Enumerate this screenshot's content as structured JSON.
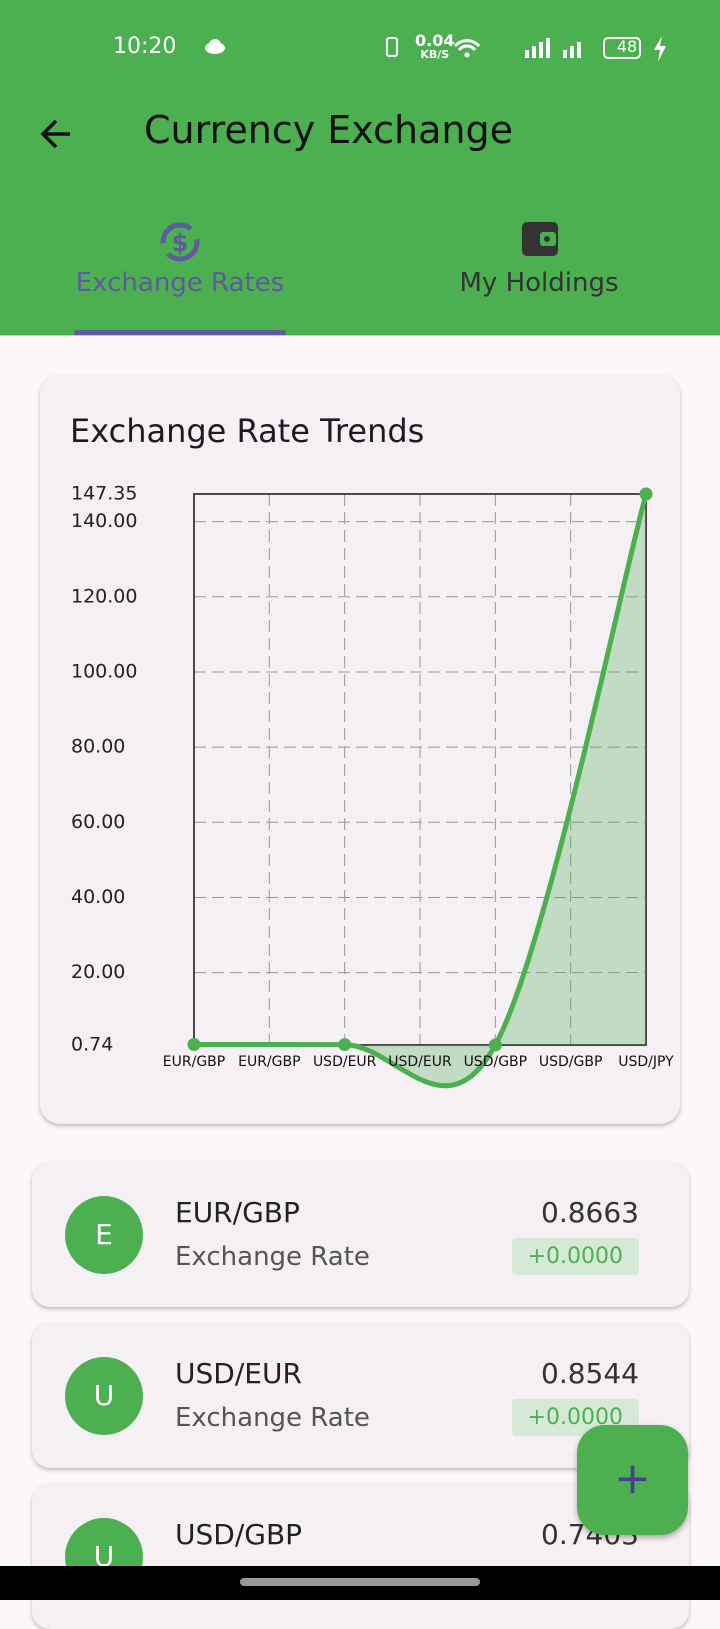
{
  "status_bar": {
    "time": "10:20",
    "speed": "0.04",
    "speed_unit": "KB/S",
    "battery": "48"
  },
  "header": {
    "title": "Currency Exchange"
  },
  "tabs": [
    "Exchange Rates",
    "My Holdings"
  ],
  "chart_data": {
    "type": "line",
    "title": "Exchange Rate Trends",
    "x": [
      0,
      1,
      2,
      3
    ],
    "values": [
      0.8663,
      0.8544,
      0.7403,
      147.35
    ],
    "color": "#4caf50",
    "xlim": [
      0,
      3
    ],
    "xticks": [
      {
        "value": 0,
        "label": "EUR/GBP"
      },
      {
        "value": 0.5,
        "label": "EUR/GBP"
      },
      {
        "value": 1,
        "label": "USD/EUR"
      },
      {
        "value": 1.5,
        "label": "USD/EUR"
      },
      {
        "value": 2,
        "label": "USD/GBP"
      },
      {
        "value": 2.5,
        "label": "USD/GBP"
      },
      {
        "value": 3,
        "label": "USD/JPY"
      }
    ],
    "ylim": [
      0.74,
      147.35
    ],
    "yticks": [
      0.74,
      {
        "value": 20,
        "label": "20.00"
      },
      {
        "value": 40,
        "label": "40.00"
      },
      {
        "value": 60,
        "label": "60.00"
      },
      {
        "value": 80,
        "label": "80.00"
      },
      {
        "value": 100,
        "label": "100.00"
      },
      {
        "value": 120,
        "label": "120.00"
      },
      {
        "value": 140,
        "label": "140.00"
      },
      147.35
    ],
    "grid": true,
    "area": true
  },
  "cards": [
    {
      "avatar": "E",
      "pair": "EUR/GBP",
      "subtitle": "Exchange Rate",
      "rate": "0.8663",
      "change": "+0.0000"
    },
    {
      "avatar": "U",
      "pair": "USD/EUR",
      "subtitle": "Exchange Rate",
      "rate": "0.8544",
      "change": "+0.0000"
    },
    {
      "avatar": "U",
      "pair": "USD/GBP",
      "rate": "0.7403"
    }
  ],
  "fab": "+"
}
